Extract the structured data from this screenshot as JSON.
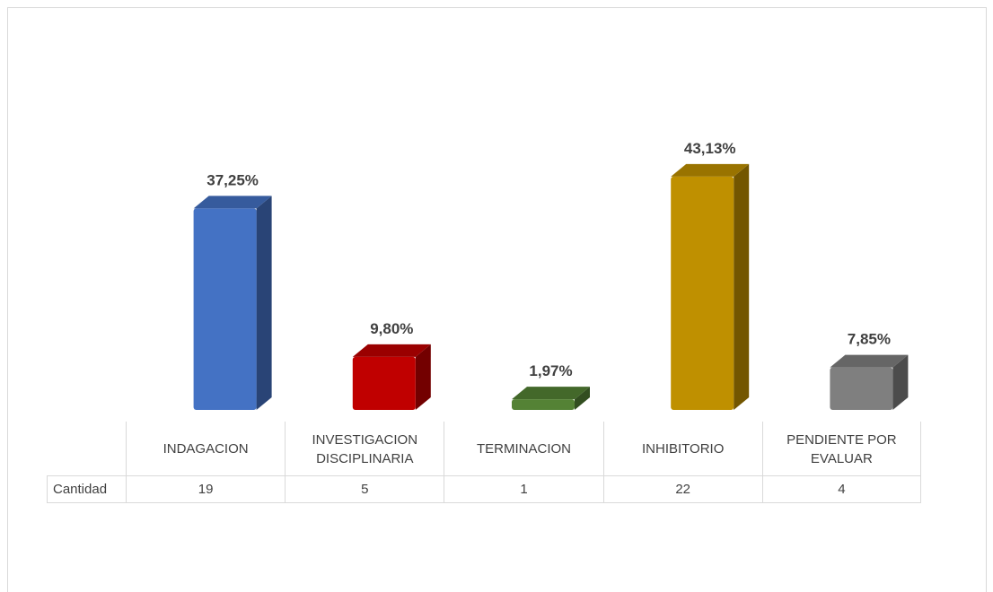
{
  "chart_data": {
    "type": "bar",
    "categories": [
      "INDAGACION",
      "INVESTIGACION DISCIPLINARIA",
      "TERMINACION",
      "INHIBITORIO",
      "PENDIENTE POR EVALUAR"
    ],
    "values": [
      37.25,
      9.8,
      1.97,
      43.13,
      7.85
    ],
    "value_labels": [
      "37,25%",
      "9,80%",
      "1,97%",
      "43,13%",
      "7,85%"
    ],
    "colors": [
      "#4472c4",
      "#c00000",
      "#548235",
      "#bf9000",
      "#7f7f7f"
    ],
    "table": {
      "row_label": "Cantidad",
      "values": [
        19,
        5,
        1,
        22,
        4
      ]
    }
  }
}
